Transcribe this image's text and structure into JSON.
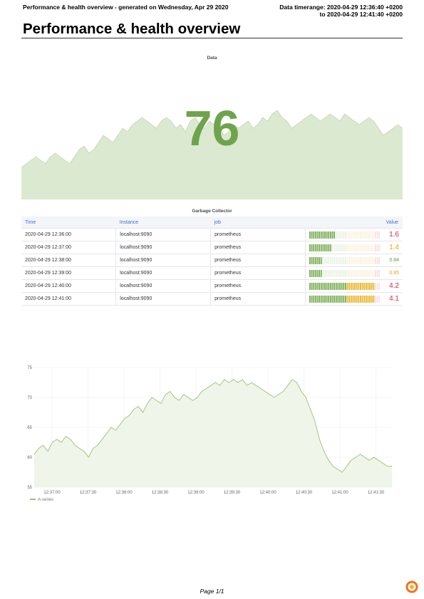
{
  "header": {
    "left": "Performance & health overview - generated on Wednesday, Apr 29 2020",
    "right_line1": "Data timerange: 2020-04-29 12:36:40 +0200",
    "right_line2": "to 2020-04-29 12:41:40 +0200",
    "title": "Performance & health overview"
  },
  "stat_panel": {
    "title": "Data",
    "value": "76",
    "color": "#6ea44c",
    "sparkline": [
      59,
      60,
      61,
      62,
      61,
      60,
      62,
      63,
      62,
      61,
      60,
      62,
      64,
      65,
      63,
      64,
      66,
      68,
      67,
      66,
      68,
      70,
      69,
      71,
      72,
      73,
      72,
      71,
      70,
      72,
      73,
      72,
      70,
      71,
      69,
      72,
      73,
      71,
      70,
      72,
      71,
      70,
      68,
      69,
      71,
      70,
      71,
      72,
      70,
      71,
      73,
      72,
      74,
      75,
      73,
      72,
      70,
      71,
      72,
      73,
      74,
      73,
      72,
      73,
      74,
      73,
      72,
      74,
      73,
      72,
      71,
      72,
      73,
      72,
      70,
      68,
      69,
      70,
      71,
      70
    ]
  },
  "gc_table": {
    "title": "Garbage Collector",
    "columns": [
      "Time",
      "Instance",
      "job",
      "Value"
    ],
    "rows": [
      {
        "time": "2020-04-29 12:36:00",
        "instance": "localhost:9090",
        "job": "prometheus",
        "value": "1.6",
        "level": 1.6,
        "color": "#c4314b"
      },
      {
        "time": "2020-04-29 12:37:00",
        "instance": "localhost:9090",
        "job": "prometheus",
        "value": "1.4",
        "level": 1.4,
        "color": "#e5a50f"
      },
      {
        "time": "2020-04-29 12:38:00",
        "instance": "localhost:9090",
        "job": "prometheus",
        "value": "0.84",
        "level": 0.84,
        "color": "#5a9c3f"
      },
      {
        "time": "2020-04-29 12:39:00",
        "instance": "localhost:9090",
        "job": "prometheus",
        "value": "0.85",
        "level": 0.85,
        "color": "#e5a50f"
      },
      {
        "time": "2020-04-29 12:40:00",
        "instance": "localhost:9090",
        "job": "prometheus",
        "value": "4.2",
        "level": 4.2,
        "color": "#c4314b"
      },
      {
        "time": "2020-04-29 12:41:00",
        "instance": "localhost:9090",
        "job": "prometheus",
        "value": "4.1",
        "level": 4.1,
        "color": "#c4314b"
      }
    ]
  },
  "chart_data": {
    "type": "line",
    "title": "",
    "xlabel": "",
    "ylabel": "",
    "ylim": [
      55,
      75
    ],
    "yticks": [
      "55",
      "60",
      "65",
      "70",
      "75"
    ],
    "xticks": [
      "12:37:00",
      "12:37:30",
      "12:38:00",
      "12:38:30",
      "12:39:00",
      "12:39:30",
      "12:40:00",
      "12:40:30",
      "12:41:00",
      "12:41:30"
    ],
    "grid": true,
    "legend": "bottom-left",
    "series": [
      {
        "name": "A-series",
        "color": "#9ac074",
        "values": [
          60.5,
          61.5,
          62,
          61,
          62.5,
          63,
          62.5,
          63.5,
          63,
          62,
          61.5,
          61,
          60,
          61.5,
          62,
          63,
          64,
          65,
          64.5,
          65.5,
          66.5,
          67,
          68,
          68.5,
          67.5,
          69,
          70,
          69.5,
          69,
          70.5,
          71,
          70,
          69.5,
          70.5,
          70,
          69.5,
          70,
          71,
          71.5,
          72,
          72.5,
          72,
          73,
          72.5,
          73,
          72.5,
          73,
          72,
          72.5,
          72,
          71.5,
          71,
          70.5,
          70,
          70.5,
          71,
          72,
          73,
          72.5,
          71,
          70,
          68,
          66,
          63,
          61,
          59.5,
          58.5,
          58,
          57.5,
          58.5,
          59.5,
          60,
          60.5,
          60,
          59.5,
          60,
          59.5,
          59,
          58.5,
          58.5
        ]
      }
    ]
  }
}
